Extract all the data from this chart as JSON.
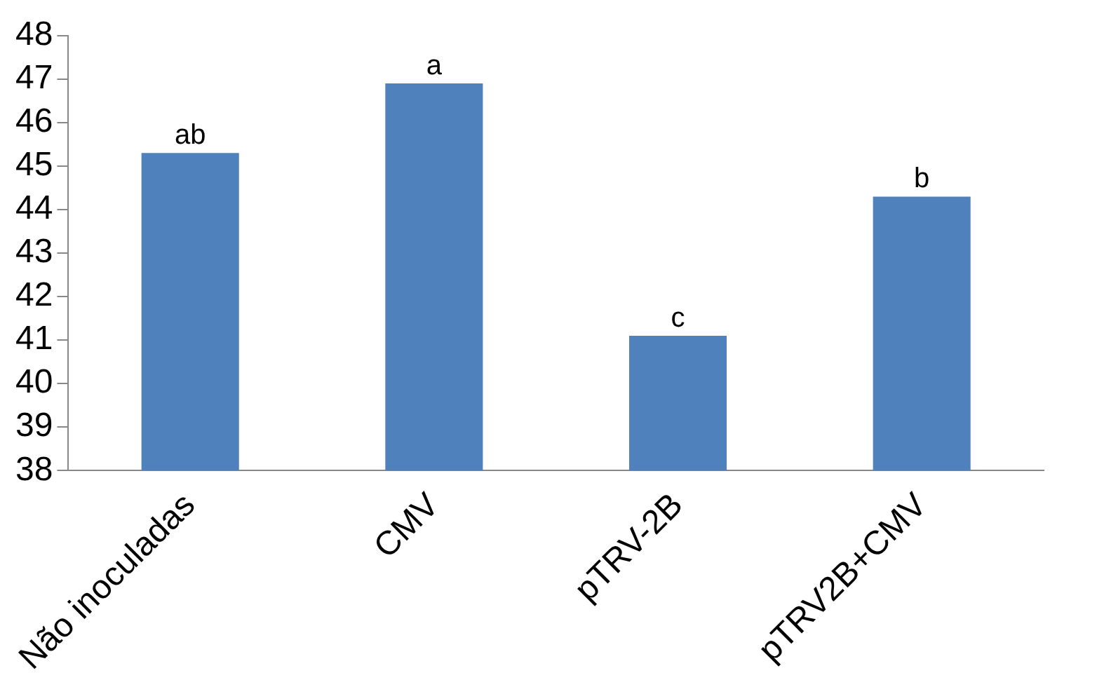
{
  "chart_data": {
    "type": "bar",
    "categories": [
      "Não inoculadas",
      "CMV",
      "pTRV-2B",
      "pTRV2B+CMV"
    ],
    "values": [
      45.3,
      46.9,
      41.1,
      44.3
    ],
    "color": "#4f81bd",
    "ylim": [
      38,
      48
    ],
    "yticks": [
      38,
      39,
      40,
      41,
      42,
      43,
      44,
      45,
      46,
      47,
      48
    ],
    "grid": false,
    "annotations": [
      {
        "text": "ab",
        "x": "Não inoculadas",
        "y": 45.3
      },
      {
        "text": "a",
        "x": "CMV",
        "y": 46.9
      },
      {
        "text": "c",
        "x": "pTRV-2B",
        "y": 41.1
      },
      {
        "text": "b",
        "x": "pTRV2B+CMV",
        "y": 44.3
      }
    ]
  }
}
